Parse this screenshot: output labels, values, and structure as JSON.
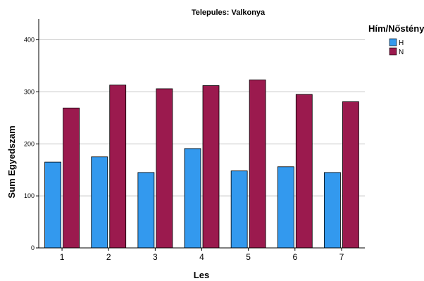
{
  "chart_data": {
    "type": "bar",
    "title": "Telepules: Valkonya",
    "xlabel": "Les",
    "ylabel": "Sum Egyedszam",
    "categories": [
      "1",
      "2",
      "3",
      "4",
      "5",
      "6",
      "7"
    ],
    "series": [
      {
        "name": "H",
        "color": "#3399ee",
        "values": [
          165,
          175,
          145,
          191,
          148,
          156,
          145
        ]
      },
      {
        "name": "N",
        "color": "#9b1a4e",
        "values": [
          269,
          313,
          306,
          312,
          323,
          295,
          281
        ]
      }
    ],
    "ylim": [
      0,
      440
    ],
    "yticks": [
      0,
      100,
      200,
      300,
      400
    ],
    "grid": true,
    "legend": {
      "title": "Hím/Nőstény",
      "placement": "right"
    }
  }
}
